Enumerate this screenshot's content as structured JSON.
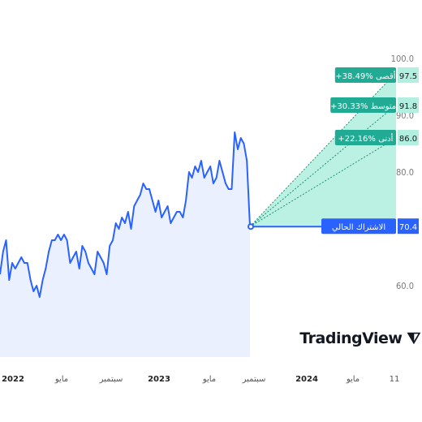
{
  "chart_data": {
    "type": "line",
    "title": "",
    "ylim": [
      52,
      100
    ],
    "y_ticks": [
      "60.0",
      "80.0",
      "100.0"
    ],
    "y_ticks_partial": [
      "90.0"
    ],
    "x_ticks": [
      {
        "label": "2022",
        "bold": true
      },
      {
        "label": "مايو",
        "bold": false
      },
      {
        "label": "سبتمبر",
        "bold": false
      },
      {
        "label": "2023",
        "bold": true
      },
      {
        "label": "مايو",
        "bold": false
      },
      {
        "label": "سبتمبر",
        "bold": false
      },
      {
        "label": "2024",
        "bold": true
      },
      {
        "label": "مايو",
        "bold": false
      },
      {
        "label": "11",
        "bold": false
      }
    ],
    "series": [
      {
        "values": [
          62,
          66,
          68,
          61,
          64,
          63,
          64,
          65,
          64,
          64,
          61,
          59,
          60,
          58,
          61,
          63,
          66,
          68,
          68,
          69,
          68,
          69,
          68,
          64,
          65,
          66,
          63,
          67,
          66,
          64,
          63,
          62,
          66,
          65,
          64,
          62,
          67,
          68,
          71,
          70,
          72,
          71,
          73,
          70,
          74,
          75,
          76,
          78,
          77,
          77,
          75,
          73,
          75,
          72,
          73,
          74,
          71,
          72,
          73,
          73,
          72,
          75,
          80,
          79,
          81,
          80,
          82,
          79,
          80,
          81,
          78,
          79,
          82,
          80,
          78,
          77,
          77,
          87,
          84,
          86,
          85,
          82,
          70.4
        ]
      }
    ],
    "current": {
      "label": "الاشتراك الحالي",
      "value": 70.4
    },
    "forecasts": [
      {
        "label": "+38.49% أقصى",
        "value": 97.5
      },
      {
        "label": "+30.33% متوسط",
        "value": 91.8
      },
      {
        "label": "+22.16% أدنى",
        "value": 86.0
      }
    ],
    "colors": {
      "line": "#2962ff",
      "area": "#eaf0fd",
      "forecast_fill": "#b2efe0",
      "forecast_line": "#1f8f74",
      "forecast_label_bg": "#22ab94",
      "current_label_bg": "#2962ff"
    }
  },
  "branding": {
    "name": "TradingView",
    "icon": "tradingview-logo-icon"
  }
}
